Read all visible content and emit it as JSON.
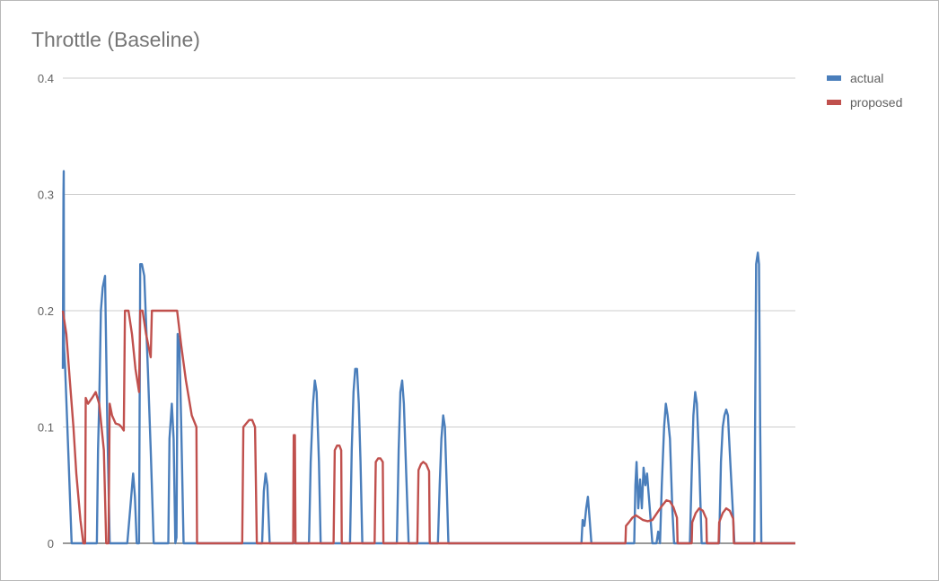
{
  "chart_data": {
    "type": "line",
    "title": "Throttle (Baseline)",
    "xlabel": "",
    "ylabel": "",
    "ylim": [
      0,
      0.4
    ],
    "yticks": [
      "0",
      "0.1",
      "0.2",
      "0.3",
      "0.4"
    ],
    "legend_position": "right",
    "grid": true,
    "series": [
      {
        "name": "actual",
        "color": "#4a7ebb",
        "points": [
          [
            0,
            0.15
          ],
          [
            0.1,
            0.3
          ],
          [
            0.15,
            0.32
          ],
          [
            0.2,
            0.17
          ],
          [
            0.4,
            0.15
          ],
          [
            1,
            0.07
          ],
          [
            1.5,
            0
          ],
          [
            5,
            0
          ],
          [
            5.8,
            0
          ],
          [
            6,
            0.08
          ],
          [
            6.2,
            0.12
          ],
          [
            6.5,
            0.2
          ],
          [
            6.8,
            0.22
          ],
          [
            7.2,
            0.23
          ],
          [
            7.6,
            0.1
          ],
          [
            8,
            0
          ],
          [
            11,
            0
          ],
          [
            11.5,
            0.03
          ],
          [
            12,
            0.06
          ],
          [
            12.3,
            0.04
          ],
          [
            12.6,
            0
          ],
          [
            13,
            0
          ],
          [
            13.2,
            0.24
          ],
          [
            13.5,
            0.24
          ],
          [
            13.9,
            0.23
          ],
          [
            14.5,
            0.15
          ],
          [
            15,
            0.08
          ],
          [
            15.5,
            0
          ],
          [
            18,
            0
          ],
          [
            18.2,
            0.09
          ],
          [
            18.6,
            0.12
          ],
          [
            18.9,
            0.09
          ],
          [
            19.2,
            0
          ],
          [
            19.4,
            0.005
          ],
          [
            19.6,
            0.18
          ],
          [
            19.9,
            0.17
          ],
          [
            20.2,
            0.1
          ],
          [
            20.6,
            0
          ],
          [
            34,
            0
          ],
          [
            34.3,
            0.045
          ],
          [
            34.6,
            0.06
          ],
          [
            34.9,
            0.05
          ],
          [
            35.3,
            0
          ],
          [
            42,
            0
          ],
          [
            42.3,
            0.07
          ],
          [
            42.7,
            0.12
          ],
          [
            43,
            0.14
          ],
          [
            43.3,
            0.13
          ],
          [
            43.7,
            0.07
          ],
          [
            44,
            0
          ],
          [
            49,
            0
          ],
          [
            49.3,
            0.08
          ],
          [
            49.6,
            0.13
          ],
          [
            49.9,
            0.15
          ],
          [
            50.2,
            0.15
          ],
          [
            50.5,
            0.12
          ],
          [
            50.8,
            0.07
          ],
          [
            51.1,
            0
          ],
          [
            57,
            0
          ],
          [
            57.3,
            0.08
          ],
          [
            57.6,
            0.13
          ],
          [
            57.9,
            0.14
          ],
          [
            58.2,
            0.12
          ],
          [
            58.6,
            0.06
          ],
          [
            59,
            0
          ],
          [
            64,
            0
          ],
          [
            64.3,
            0.05
          ],
          [
            64.6,
            0.09
          ],
          [
            64.9,
            0.11
          ],
          [
            65.2,
            0.1
          ],
          [
            65.5,
            0.05
          ],
          [
            65.8,
            0
          ],
          [
            88.5,
            0
          ],
          [
            88.7,
            0.02
          ],
          [
            89,
            0.015
          ],
          [
            89.3,
            0.03
          ],
          [
            89.6,
            0.04
          ],
          [
            89.9,
            0.02
          ],
          [
            90.2,
            0
          ],
          [
            97.5,
            0
          ],
          [
            97.7,
            0.05
          ],
          [
            97.9,
            0.07
          ],
          [
            98.2,
            0.03
          ],
          [
            98.5,
            0.055
          ],
          [
            98.8,
            0.03
          ],
          [
            99.1,
            0.065
          ],
          [
            99.4,
            0.05
          ],
          [
            99.7,
            0.06
          ],
          [
            100,
            0.04
          ],
          [
            100.3,
            0.02
          ],
          [
            100.6,
            0
          ],
          [
            101,
            0
          ],
          [
            101.3,
            0
          ],
          [
            101.6,
            0.01
          ],
          [
            101.9,
            0
          ],
          [
            102.2,
            0.05
          ],
          [
            102.6,
            0.1
          ],
          [
            102.9,
            0.12
          ],
          [
            103.2,
            0.11
          ],
          [
            103.6,
            0.09
          ],
          [
            104,
            0.03
          ],
          [
            104.3,
            0
          ],
          [
            107,
            0
          ],
          [
            107.3,
            0.06
          ],
          [
            107.6,
            0.11
          ],
          [
            107.9,
            0.13
          ],
          [
            108.2,
            0.12
          ],
          [
            108.6,
            0.07
          ],
          [
            109,
            0
          ],
          [
            112,
            0
          ],
          [
            112.3,
            0.07
          ],
          [
            112.6,
            0.1
          ],
          [
            112.9,
            0.11
          ],
          [
            113.2,
            0.115
          ],
          [
            113.5,
            0.11
          ],
          [
            113.9,
            0.07
          ],
          [
            114.3,
            0.03
          ],
          [
            114.6,
            0
          ],
          [
            118,
            0
          ],
          [
            118.3,
            0.24
          ],
          [
            118.6,
            0.25
          ],
          [
            118.8,
            0.24
          ],
          [
            119,
            0.1
          ],
          [
            119.2,
            0
          ],
          [
            125,
            0
          ]
        ]
      },
      {
        "name": "proposed",
        "color": "#c0504d",
        "points": [
          [
            0,
            0.2
          ],
          [
            0.6,
            0.18
          ],
          [
            1.2,
            0.14
          ],
          [
            1.8,
            0.1
          ],
          [
            2.3,
            0.06
          ],
          [
            3,
            0.02
          ],
          [
            3.5,
            0
          ],
          [
            3.8,
            0
          ],
          [
            3.9,
            0.125
          ],
          [
            4.3,
            0.12
          ],
          [
            5,
            0.125
          ],
          [
            5.6,
            0.13
          ],
          [
            6.2,
            0.12
          ],
          [
            6.6,
            0.1
          ],
          [
            7,
            0.08
          ],
          [
            7.4,
            0
          ],
          [
            7.8,
            0
          ],
          [
            8,
            0.12
          ],
          [
            8.4,
            0.11
          ],
          [
            9,
            0.103
          ],
          [
            9.6,
            0.102
          ],
          [
            10,
            0.1
          ],
          [
            10.4,
            0.097
          ],
          [
            10.6,
            0.2
          ],
          [
            11.2,
            0.2
          ],
          [
            11.8,
            0.18
          ],
          [
            12.4,
            0.15
          ],
          [
            13,
            0.13
          ],
          [
            13.2,
            0.2
          ],
          [
            13.6,
            0.2
          ],
          [
            14.2,
            0.18
          ],
          [
            15,
            0.16
          ],
          [
            15.2,
            0.2
          ],
          [
            19.5,
            0.2
          ],
          [
            20.2,
            0.17
          ],
          [
            21,
            0.14
          ],
          [
            22,
            0.11
          ],
          [
            22.8,
            0.1
          ],
          [
            22.9,
            0
          ],
          [
            30.6,
            0
          ],
          [
            30.8,
            0.1
          ],
          [
            31.3,
            0.103
          ],
          [
            31.8,
            0.106
          ],
          [
            32.3,
            0.106
          ],
          [
            32.8,
            0.1
          ],
          [
            33.1,
            0
          ],
          [
            39.3,
            0
          ],
          [
            39.4,
            0.093
          ],
          [
            39.6,
            0.093
          ],
          [
            39.7,
            0
          ],
          [
            46.2,
            0
          ],
          [
            46.4,
            0.08
          ],
          [
            46.8,
            0.084
          ],
          [
            47.2,
            0.084
          ],
          [
            47.5,
            0.08
          ],
          [
            47.6,
            0
          ],
          [
            53.2,
            0
          ],
          [
            53.4,
            0.07
          ],
          [
            53.8,
            0.073
          ],
          [
            54.2,
            0.073
          ],
          [
            54.6,
            0.07
          ],
          [
            54.7,
            0
          ],
          [
            60.5,
            0
          ],
          [
            60.7,
            0.063
          ],
          [
            61.1,
            0.068
          ],
          [
            61.5,
            0.07
          ],
          [
            62,
            0.068
          ],
          [
            62.5,
            0.062
          ],
          [
            62.6,
            0
          ],
          [
            96,
            0
          ],
          [
            96.1,
            0.015
          ],
          [
            96.6,
            0.018
          ],
          [
            97.2,
            0.022
          ],
          [
            97.8,
            0.024
          ],
          [
            98.4,
            0.022
          ],
          [
            99,
            0.02
          ],
          [
            99.8,
            0.019
          ],
          [
            100.6,
            0.02
          ],
          [
            101.4,
            0.026
          ],
          [
            102.2,
            0.032
          ],
          [
            103,
            0.037
          ],
          [
            103.6,
            0.036
          ],
          [
            104.2,
            0.031
          ],
          [
            104.8,
            0.022
          ],
          [
            104.9,
            0
          ],
          [
            107.3,
            0
          ],
          [
            107.4,
            0.018
          ],
          [
            108,
            0.026
          ],
          [
            108.6,
            0.03
          ],
          [
            109.2,
            0.028
          ],
          [
            109.8,
            0.021
          ],
          [
            109.9,
            0
          ],
          [
            111.9,
            0
          ],
          [
            112,
            0.018
          ],
          [
            112.6,
            0.026
          ],
          [
            113.2,
            0.03
          ],
          [
            113.8,
            0.028
          ],
          [
            114.4,
            0.021
          ],
          [
            114.5,
            0
          ],
          [
            125,
            0
          ]
        ]
      }
    ]
  }
}
